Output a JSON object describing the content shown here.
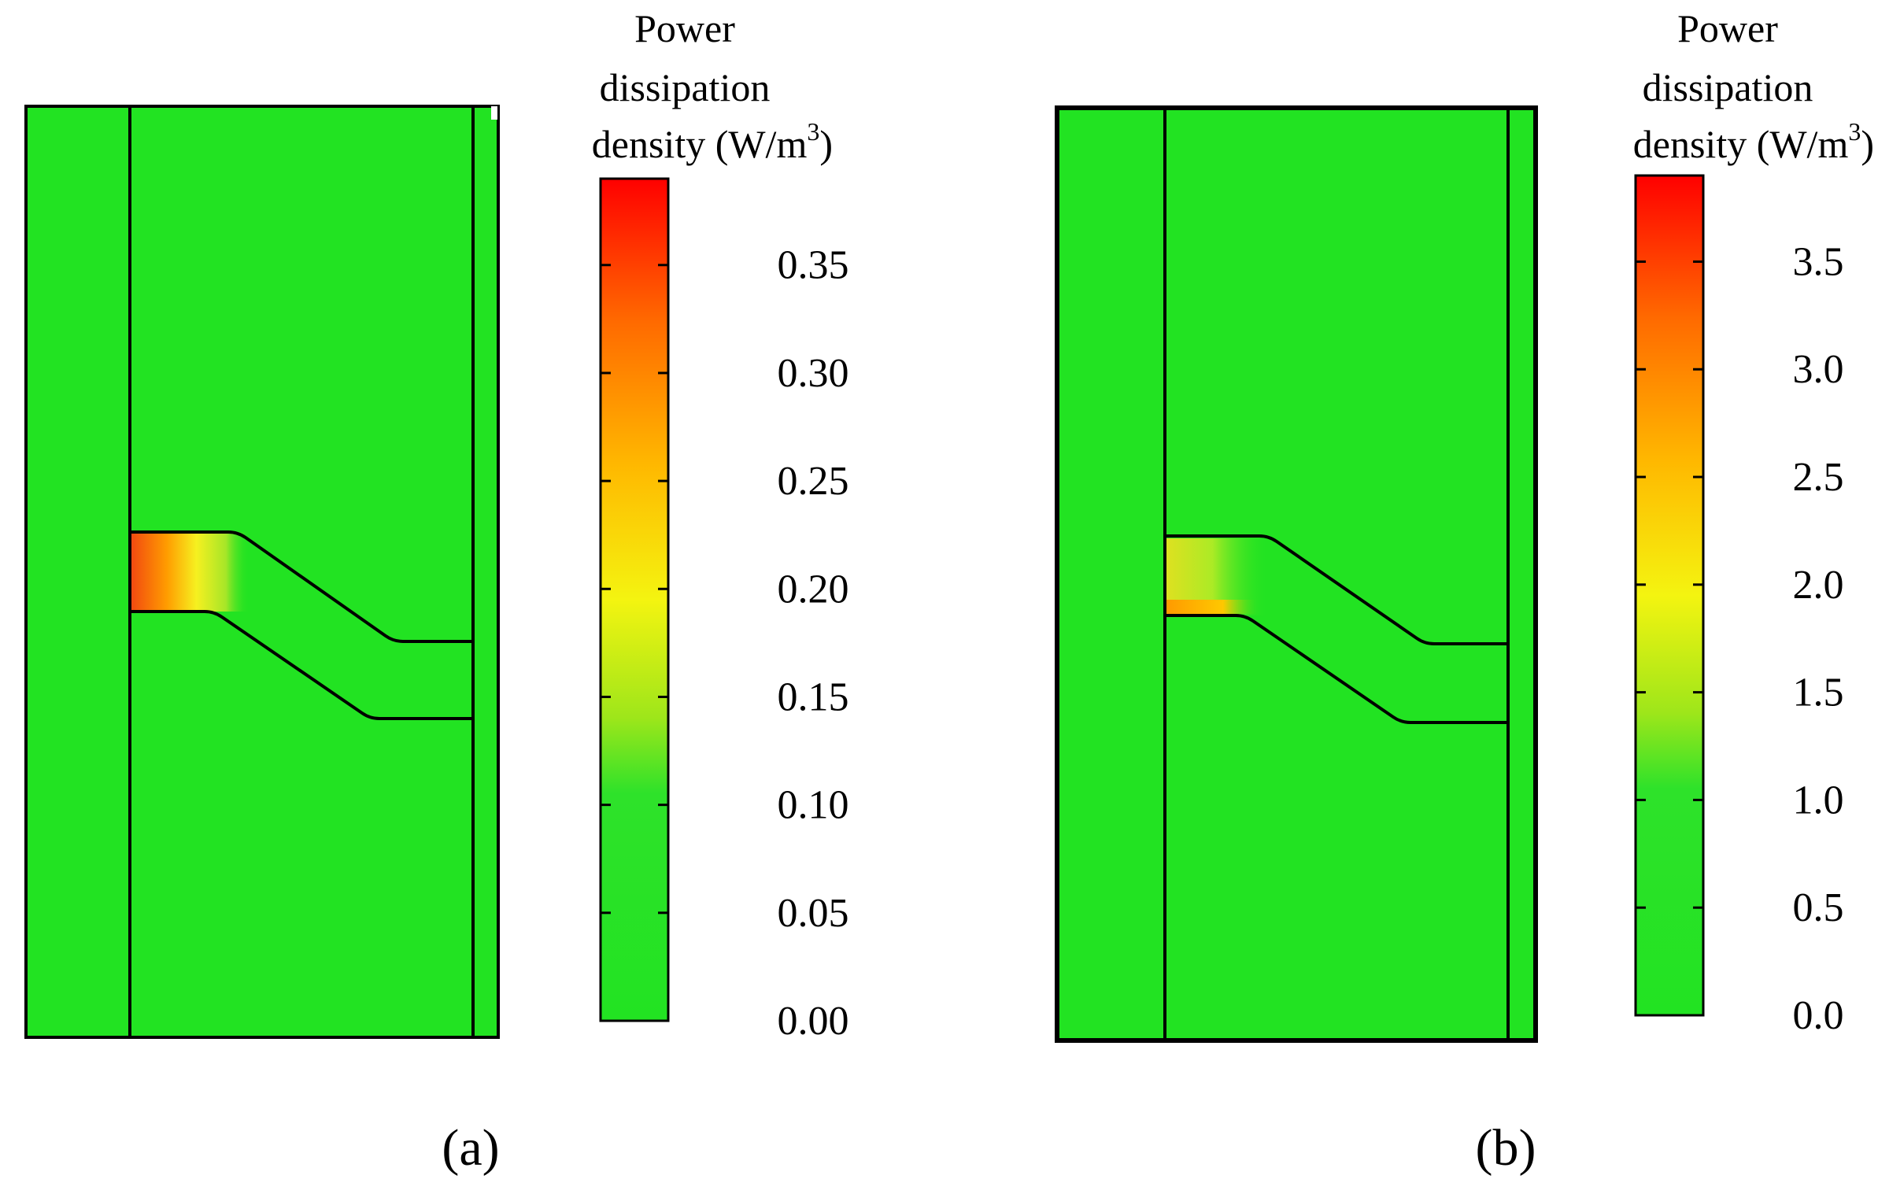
{
  "figure": {
    "panels": [
      {
        "caption": "(a)",
        "colorbar": {
          "title_lines": [
            "Power",
            "dissipation",
            "density (W/m"
          ],
          "title_superscript": "3",
          "title_close": ")",
          "tick_labels": [
            "0.35",
            "0.30",
            "0.25",
            "0.20",
            "0.15",
            "0.10",
            "0.05",
            "0.00"
          ],
          "ticks": [
            0.35,
            0.3,
            0.25,
            0.2,
            0.15,
            0.1,
            0.05,
            0.0
          ],
          "min": 0.0,
          "max": 0.39
        },
        "hotspot_value": 0.36
      },
      {
        "caption": "(b)",
        "colorbar": {
          "title_lines": [
            "Power",
            "dissipation",
            "density (W/m"
          ],
          "title_superscript": "3",
          "title_close": ")",
          "tick_labels": [
            "3.5",
            "3.0",
            "2.5",
            "2.0",
            "1.5",
            "1.0",
            "0.5",
            "0.0"
          ],
          "ticks": [
            3.5,
            3.0,
            2.5,
            2.0,
            1.5,
            1.0,
            0.5,
            0.0
          ],
          "min": 0.0,
          "max": 3.9
        },
        "hotspot_value": 2.2
      }
    ],
    "colors": {
      "background_green": "#22e322",
      "scale_low": "#22e322",
      "scale_mid": "#f0f010",
      "scale_orange": "#ff8800",
      "scale_high": "#ff0000",
      "outline": "#000000"
    }
  }
}
